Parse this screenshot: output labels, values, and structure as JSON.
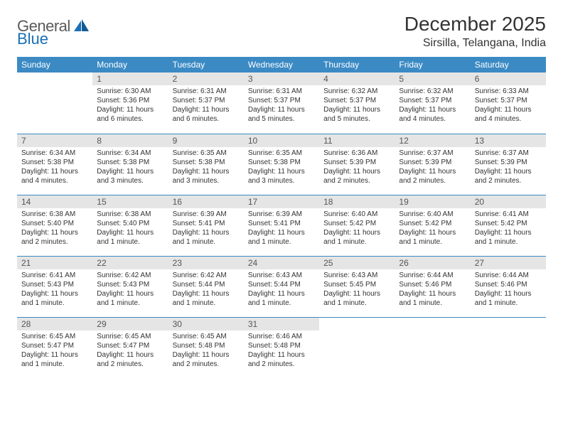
{
  "brand": {
    "part1": "General",
    "part2": "Blue"
  },
  "title": "December 2025",
  "location": "Sirsilla, Telangana, India",
  "colors": {
    "header_bg": "#3b8ac4",
    "header_fg": "#ffffff",
    "daynum_bg": "#e5e5e5",
    "daynum_fg": "#555555",
    "rule": "#3b8ac4",
    "text": "#333333",
    "logo_gray": "#5a5a5a",
    "logo_blue": "#1a6fb5",
    "page_bg": "#ffffff"
  },
  "typography": {
    "title_size_pt": 21,
    "location_size_pt": 12,
    "dow_size_pt": 9,
    "daynum_size_pt": 9,
    "body_size_pt": 7.5,
    "font_family": "Arial"
  },
  "days_of_week": [
    "Sunday",
    "Monday",
    "Tuesday",
    "Wednesday",
    "Thursday",
    "Friday",
    "Saturday"
  ],
  "weeks": [
    [
      null,
      {
        "n": "1",
        "sr": "Sunrise: 6:30 AM",
        "ss": "Sunset: 5:36 PM",
        "dl": "Daylight: 11 hours and 6 minutes."
      },
      {
        "n": "2",
        "sr": "Sunrise: 6:31 AM",
        "ss": "Sunset: 5:37 PM",
        "dl": "Daylight: 11 hours and 6 minutes."
      },
      {
        "n": "3",
        "sr": "Sunrise: 6:31 AM",
        "ss": "Sunset: 5:37 PM",
        "dl": "Daylight: 11 hours and 5 minutes."
      },
      {
        "n": "4",
        "sr": "Sunrise: 6:32 AM",
        "ss": "Sunset: 5:37 PM",
        "dl": "Daylight: 11 hours and 5 minutes."
      },
      {
        "n": "5",
        "sr": "Sunrise: 6:32 AM",
        "ss": "Sunset: 5:37 PM",
        "dl": "Daylight: 11 hours and 4 minutes."
      },
      {
        "n": "6",
        "sr": "Sunrise: 6:33 AM",
        "ss": "Sunset: 5:37 PM",
        "dl": "Daylight: 11 hours and 4 minutes."
      }
    ],
    [
      {
        "n": "7",
        "sr": "Sunrise: 6:34 AM",
        "ss": "Sunset: 5:38 PM",
        "dl": "Daylight: 11 hours and 4 minutes."
      },
      {
        "n": "8",
        "sr": "Sunrise: 6:34 AM",
        "ss": "Sunset: 5:38 PM",
        "dl": "Daylight: 11 hours and 3 minutes."
      },
      {
        "n": "9",
        "sr": "Sunrise: 6:35 AM",
        "ss": "Sunset: 5:38 PM",
        "dl": "Daylight: 11 hours and 3 minutes."
      },
      {
        "n": "10",
        "sr": "Sunrise: 6:35 AM",
        "ss": "Sunset: 5:38 PM",
        "dl": "Daylight: 11 hours and 3 minutes."
      },
      {
        "n": "11",
        "sr": "Sunrise: 6:36 AM",
        "ss": "Sunset: 5:39 PM",
        "dl": "Daylight: 11 hours and 2 minutes."
      },
      {
        "n": "12",
        "sr": "Sunrise: 6:37 AM",
        "ss": "Sunset: 5:39 PM",
        "dl": "Daylight: 11 hours and 2 minutes."
      },
      {
        "n": "13",
        "sr": "Sunrise: 6:37 AM",
        "ss": "Sunset: 5:39 PM",
        "dl": "Daylight: 11 hours and 2 minutes."
      }
    ],
    [
      {
        "n": "14",
        "sr": "Sunrise: 6:38 AM",
        "ss": "Sunset: 5:40 PM",
        "dl": "Daylight: 11 hours and 2 minutes."
      },
      {
        "n": "15",
        "sr": "Sunrise: 6:38 AM",
        "ss": "Sunset: 5:40 PM",
        "dl": "Daylight: 11 hours and 1 minute."
      },
      {
        "n": "16",
        "sr": "Sunrise: 6:39 AM",
        "ss": "Sunset: 5:41 PM",
        "dl": "Daylight: 11 hours and 1 minute."
      },
      {
        "n": "17",
        "sr": "Sunrise: 6:39 AM",
        "ss": "Sunset: 5:41 PM",
        "dl": "Daylight: 11 hours and 1 minute."
      },
      {
        "n": "18",
        "sr": "Sunrise: 6:40 AM",
        "ss": "Sunset: 5:42 PM",
        "dl": "Daylight: 11 hours and 1 minute."
      },
      {
        "n": "19",
        "sr": "Sunrise: 6:40 AM",
        "ss": "Sunset: 5:42 PM",
        "dl": "Daylight: 11 hours and 1 minute."
      },
      {
        "n": "20",
        "sr": "Sunrise: 6:41 AM",
        "ss": "Sunset: 5:42 PM",
        "dl": "Daylight: 11 hours and 1 minute."
      }
    ],
    [
      {
        "n": "21",
        "sr": "Sunrise: 6:41 AM",
        "ss": "Sunset: 5:43 PM",
        "dl": "Daylight: 11 hours and 1 minute."
      },
      {
        "n": "22",
        "sr": "Sunrise: 6:42 AM",
        "ss": "Sunset: 5:43 PM",
        "dl": "Daylight: 11 hours and 1 minute."
      },
      {
        "n": "23",
        "sr": "Sunrise: 6:42 AM",
        "ss": "Sunset: 5:44 PM",
        "dl": "Daylight: 11 hours and 1 minute."
      },
      {
        "n": "24",
        "sr": "Sunrise: 6:43 AM",
        "ss": "Sunset: 5:44 PM",
        "dl": "Daylight: 11 hours and 1 minute."
      },
      {
        "n": "25",
        "sr": "Sunrise: 6:43 AM",
        "ss": "Sunset: 5:45 PM",
        "dl": "Daylight: 11 hours and 1 minute."
      },
      {
        "n": "26",
        "sr": "Sunrise: 6:44 AM",
        "ss": "Sunset: 5:46 PM",
        "dl": "Daylight: 11 hours and 1 minute."
      },
      {
        "n": "27",
        "sr": "Sunrise: 6:44 AM",
        "ss": "Sunset: 5:46 PM",
        "dl": "Daylight: 11 hours and 1 minute."
      }
    ],
    [
      {
        "n": "28",
        "sr": "Sunrise: 6:45 AM",
        "ss": "Sunset: 5:47 PM",
        "dl": "Daylight: 11 hours and 1 minute."
      },
      {
        "n": "29",
        "sr": "Sunrise: 6:45 AM",
        "ss": "Sunset: 5:47 PM",
        "dl": "Daylight: 11 hours and 2 minutes."
      },
      {
        "n": "30",
        "sr": "Sunrise: 6:45 AM",
        "ss": "Sunset: 5:48 PM",
        "dl": "Daylight: 11 hours and 2 minutes."
      },
      {
        "n": "31",
        "sr": "Sunrise: 6:46 AM",
        "ss": "Sunset: 5:48 PM",
        "dl": "Daylight: 11 hours and 2 minutes."
      },
      null,
      null,
      null
    ]
  ]
}
